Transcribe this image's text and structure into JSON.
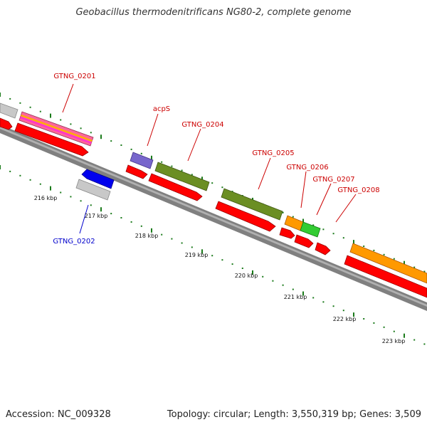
{
  "title": "Geobacillus thermodenitrificans NG80-2, complete genome",
  "footer": {
    "accession": "Accession: NC_009328",
    "summary": "Topology: circular; Length: 3,550,319 bp; Genes: 3,509"
  },
  "colors": {
    "cds": "#ff0000",
    "forward_label": "#cc0000",
    "reverse_label": "#0000cc",
    "backbone": "#808080",
    "tick": "#1a7a1a"
  },
  "scale_labels": [
    "216 kbp",
    "217 kbp",
    "218 kbp",
    "219 kbp",
    "220 kbp",
    "221 kbp",
    "222 kbp",
    "223 kbp"
  ],
  "gene_labels": [
    {
      "text": "GTNG_0201",
      "strand": "forward"
    },
    {
      "text": "GTNG_0202",
      "strand": "reverse"
    },
    {
      "text": "acpS",
      "strand": "forward"
    },
    {
      "text": "GTNG_0204",
      "strand": "forward"
    },
    {
      "text": "GTNG_0205",
      "strand": "forward"
    },
    {
      "text": "GTNG_0206",
      "strand": "forward"
    },
    {
      "text": "GTNG_0207",
      "strand": "forward"
    },
    {
      "text": "GTNG_0208",
      "strand": "forward"
    }
  ],
  "features": [
    {
      "gene": "",
      "strand": "forward",
      "color": "#c0c0c0"
    },
    {
      "gene": "GTNG_0201",
      "strand": "forward",
      "color": "#ff66aa"
    },
    {
      "gene": "GTNG_0202",
      "strand": "reverse",
      "color": "#0000ff"
    },
    {
      "gene": "acpS",
      "strand": "forward",
      "color": "#7060cc"
    },
    {
      "gene": "GTNG_0204",
      "strand": "forward",
      "color": "#6b8e23"
    },
    {
      "gene": "GTNG_0205",
      "strand": "forward",
      "color": "#6b8e23"
    },
    {
      "gene": "GTNG_0206",
      "strand": "forward",
      "color": "#ff9900"
    },
    {
      "gene": "GTNG_0207",
      "strand": "forward",
      "color": "#33cc33"
    },
    {
      "gene": "GTNG_0208",
      "strand": "forward",
      "color": "#ff9900"
    }
  ]
}
